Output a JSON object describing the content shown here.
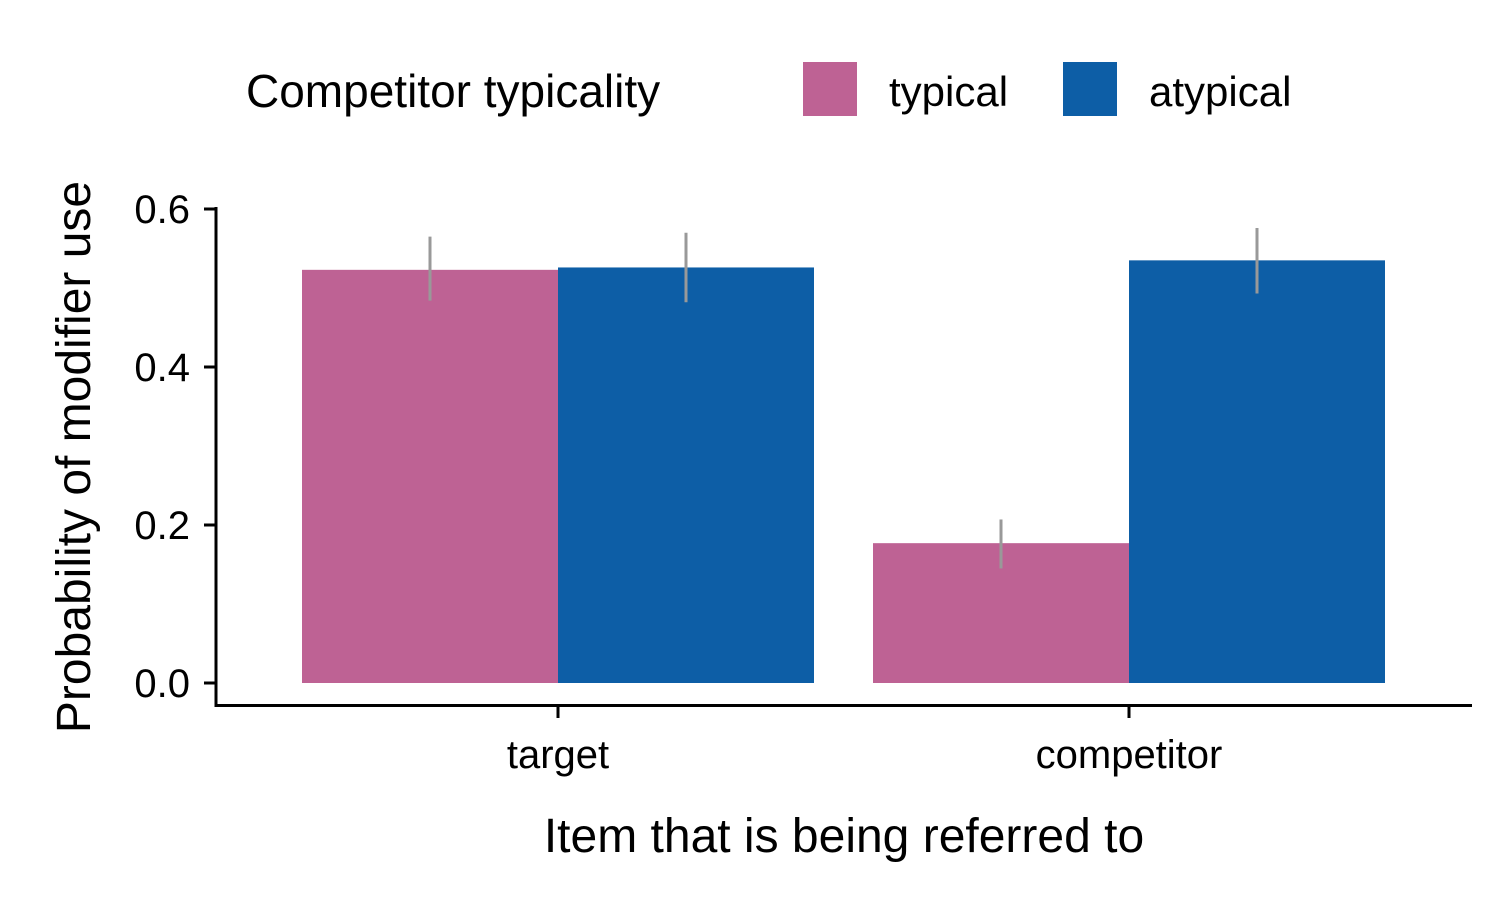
{
  "chart_data": {
    "type": "bar",
    "categories": [
      "target",
      "competitor"
    ],
    "series": [
      {
        "name": "typical",
        "color": "#BE6294",
        "values": [
          0.523,
          0.177
        ],
        "error_low": [
          0.484,
          0.145
        ],
        "error_high": [
          0.565,
          0.207
        ]
      },
      {
        "name": "atypical",
        "color": "#0D5EA6",
        "values": [
          0.526,
          0.535
        ],
        "error_low": [
          0.482,
          0.493
        ],
        "error_high": [
          0.57,
          0.576
        ]
      }
    ],
    "legend_title": "Competitor typicality",
    "legend_position": "top",
    "xlabel": "Item that is being referred to",
    "ylabel": "Probability of modifier use",
    "ylim": [
      0,
      0.6
    ],
    "yticks": [
      "0.0",
      "0.2",
      "0.4",
      "0.6"
    ],
    "grid": false
  }
}
